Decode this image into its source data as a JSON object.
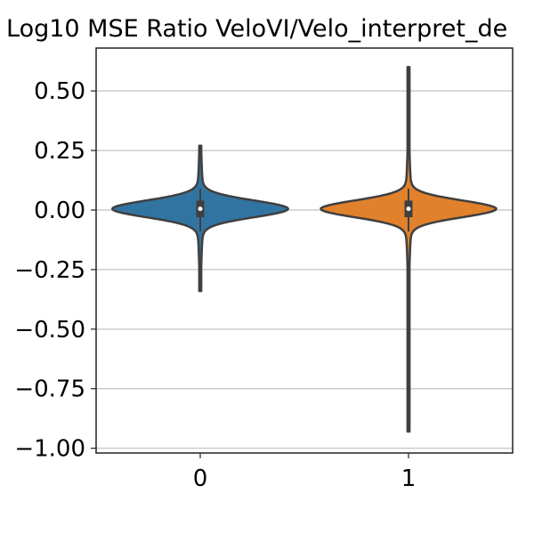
{
  "chart_data": {
    "type": "violin",
    "title": "Log10 MSE Ratio VeloVI/Velo_interpret_de",
    "xlabel": "",
    "ylabel": "",
    "categories": [
      "0",
      "1"
    ],
    "ylim": [
      -1.02,
      0.68
    ],
    "yticks": [
      0.5,
      0.25,
      0.0,
      -0.25,
      -0.5,
      -0.75,
      -1.0
    ],
    "ytick_labels": [
      "0.50",
      "0.25",
      "0.00",
      "−0.25",
      "−0.50",
      "−0.75",
      "−1.00"
    ],
    "grid": "horizontal",
    "violins": [
      {
        "category": "0",
        "color": "#3274a1",
        "min": -0.34,
        "max": 0.27,
        "q1": -0.03,
        "median": 0.005,
        "q3": 0.04,
        "whisker_low": -0.09,
        "whisker_high": 0.09
      },
      {
        "category": "1",
        "color": "#e1812c",
        "min": -0.93,
        "max": 0.6,
        "q1": -0.03,
        "median": 0.005,
        "q3": 0.04,
        "whisker_low": -0.09,
        "whisker_high": 0.09
      }
    ]
  }
}
